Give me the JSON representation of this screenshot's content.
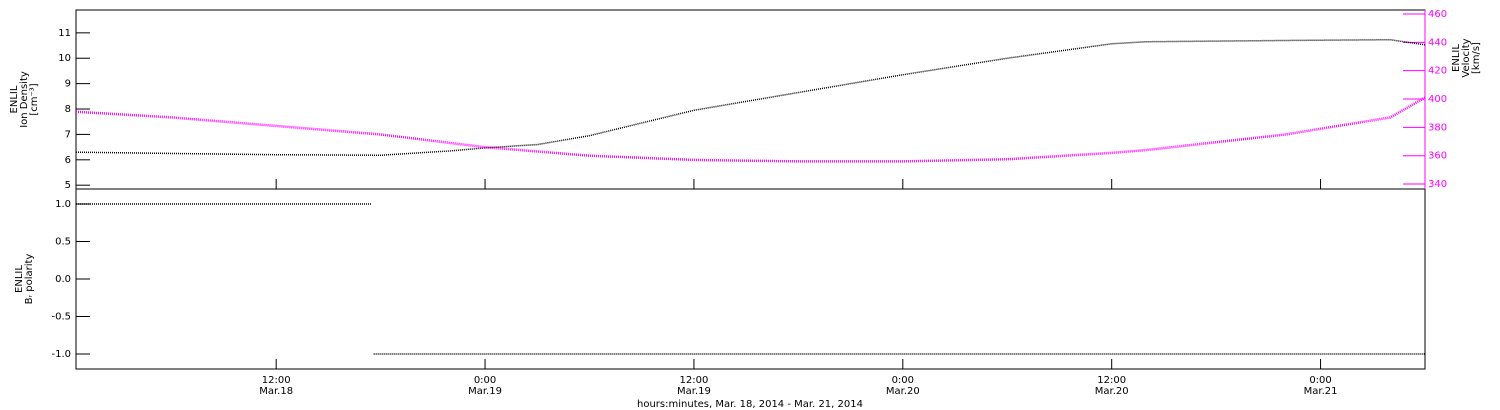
{
  "chart_data": [
    {
      "type": "line",
      "ylabel": [
        "ENLIL",
        "Ion Density",
        "[cm⁻³]"
      ],
      "y2label": [
        "ENLIL",
        "Velocity",
        "[km/s]"
      ],
      "xlim": [
        0.5,
        78
      ],
      "ylim": [
        4.85,
        11.9
      ],
      "yticks": [
        5,
        6,
        7,
        8,
        9,
        10,
        11
      ],
      "y2lim": [
        336.5,
        462.8
      ],
      "y2ticks": [
        340,
        360,
        380,
        400,
        420,
        440,
        460
      ],
      "x": [
        0.5,
        6,
        12,
        18,
        22,
        24,
        27,
        30,
        36,
        42,
        48,
        54,
        60,
        62,
        70,
        76,
        78
      ],
      "series": [
        {
          "name": "Ion Density",
          "color": "#000000",
          "axis": "y",
          "values": [
            6.3,
            6.25,
            6.2,
            6.18,
            6.35,
            6.47,
            6.6,
            6.95,
            7.95,
            8.65,
            9.35,
            10.0,
            10.57,
            10.65,
            10.7,
            10.73,
            10.53
          ]
        },
        {
          "name": "Velocity",
          "color": "#ff00ff",
          "axis": "y2",
          "values": [
            391,
            387,
            381,
            375,
            369,
            366,
            363,
            360,
            357,
            356,
            356,
            357.5,
            362,
            364,
            375,
            387,
            401
          ]
        }
      ]
    },
    {
      "type": "line",
      "ylabel": [
        "ENLIL",
        "Bᵣ polarity"
      ],
      "xlabel": "hours:minutes, Mar. 18, 2014 - Mar. 21, 2014",
      "xlim": [
        0.5,
        78
      ],
      "xticks": [
        {
          "value": 12,
          "label": "12:00",
          "date": "Mar.18"
        },
        {
          "value": 24,
          "label": "0:00",
          "date": "Mar.19"
        },
        {
          "value": 36,
          "label": "12:00",
          "date": "Mar.19"
        },
        {
          "value": 48,
          "label": "0:00",
          "date": "Mar.20"
        },
        {
          "value": 60,
          "label": "12:00",
          "date": "Mar.20"
        },
        {
          "value": 72,
          "label": "0:00",
          "date": "Mar.21"
        }
      ],
      "ylim": [
        -1.2,
        1.2
      ],
      "yticks": [
        {
          "value": -1,
          "label": "-1.0"
        },
        -0.5,
        {
          "value": 0,
          "label": "0.0"
        },
        0.5,
        {
          "value": 1,
          "label": "1.0"
        }
      ],
      "x": [
        0.5,
        17.5,
        17.55,
        17.6,
        78
      ],
      "series": [
        {
          "name": "Br polarity",
          "color": "#000000",
          "axis": "y",
          "values": [
            1,
            1,
            null,
            -1,
            -1
          ]
        }
      ]
    }
  ]
}
